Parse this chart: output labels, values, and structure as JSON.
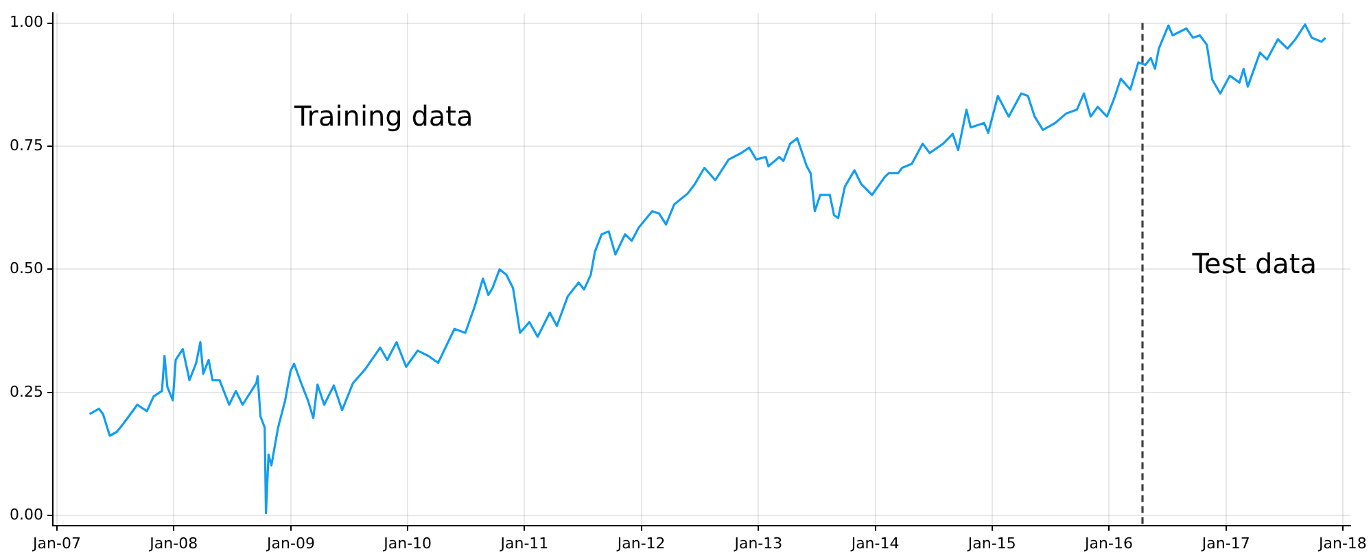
{
  "chart_data": {
    "type": "line",
    "x": [
      "2007-04-13",
      "2007-05-12",
      "2007-05-25",
      "2007-06-15",
      "2007-07-07",
      "2007-07-28",
      "2007-09-09",
      "2007-10-09",
      "2007-10-30",
      "2007-11-25",
      "2007-12-03",
      "2007-12-12",
      "2007-12-29",
      "2008-01-07",
      "2008-01-29",
      "2008-02-19",
      "2008-03-11",
      "2008-03-24",
      "2008-04-02",
      "2008-04-19",
      "2008-05-01",
      "2008-05-23",
      "2008-06-22",
      "2008-07-13",
      "2008-08-03",
      "2008-09-15",
      "2008-09-19",
      "2008-09-28",
      "2008-10-11",
      "2008-10-15",
      "2008-10-23",
      "2008-11-01",
      "2008-11-22",
      "2008-12-14",
      "2008-12-31",
      "2009-01-11",
      "2009-02-02",
      "2009-02-23",
      "2009-03-12",
      "2009-03-25",
      "2009-04-15",
      "2009-05-15",
      "2009-06-10",
      "2009-07-14",
      "2009-08-21",
      "2009-10-07",
      "2009-10-29",
      "2009-11-27",
      "2009-12-27",
      "2010-02-01",
      "2010-03-07",
      "2010-04-06",
      "2010-05-27",
      "2010-06-30",
      "2010-07-30",
      "2010-08-24",
      "2010-09-10",
      "2010-09-23",
      "2010-10-15",
      "2010-11-05",
      "2010-11-26",
      "2010-12-18",
      "2011-01-16",
      "2011-02-11",
      "2011-03-21",
      "2011-04-12",
      "2011-05-16",
      "2011-06-19",
      "2011-07-06",
      "2011-07-27",
      "2011-08-09",
      "2011-08-30",
      "2011-09-21",
      "2011-10-12",
      "2011-11-11",
      "2011-12-02",
      "2011-12-24",
      "2012-02-04",
      "2012-02-26",
      "2012-03-18",
      "2012-04-13",
      "2012-05-25",
      "2012-06-16",
      "2012-07-16",
      "2012-08-19",
      "2012-09-30",
      "2012-11-08",
      "2012-12-03",
      "2012-12-25",
      "2013-01-24",
      "2013-02-01",
      "2013-03-07",
      "2013-03-20",
      "2013-04-10",
      "2013-05-02",
      "2013-06-01",
      "2013-06-13",
      "2013-06-26",
      "2013-07-13",
      "2013-08-12",
      "2013-08-25",
      "2013-09-07",
      "2013-09-28",
      "2013-10-28",
      "2013-11-18",
      "2013-12-22",
      "2014-01-30",
      "2014-02-12",
      "2014-03-13",
      "2014-03-26",
      "2014-04-25",
      "2014-05-29",
      "2014-06-20",
      "2014-08-01",
      "2014-08-31",
      "2014-09-17",
      "2014-10-13",
      "2014-10-26",
      "2014-12-07",
      "2014-12-20",
      "2015-01-19",
      "2015-02-22",
      "2015-04-02",
      "2015-04-23",
      "2015-05-14",
      "2015-06-09",
      "2015-07-17",
      "2015-08-20",
      "2015-09-23",
      "2015-10-15",
      "2015-11-05",
      "2015-11-27",
      "2015-12-26",
      "2016-01-17",
      "2016-02-07",
      "2016-03-08",
      "2016-04-02",
      "2016-04-24",
      "2016-05-11",
      "2016-05-24",
      "2016-06-05",
      "2016-07-05",
      "2016-07-18",
      "2016-08-30",
      "2016-09-20",
      "2016-10-11",
      "2016-11-02",
      "2016-11-19",
      "2016-12-14",
      "2017-01-13",
      "2017-02-12",
      "2017-02-25",
      "2017-03-10",
      "2017-04-17",
      "2017-05-09",
      "2017-06-12",
      "2017-07-12",
      "2017-08-06",
      "2017-09-05",
      "2017-09-26",
      "2017-10-26",
      "2017-11-08"
    ],
    "series": [
      {
        "color": "#119df2",
        "values": [
          0.206,
          0.217,
          0.206,
          0.162,
          0.17,
          0.187,
          0.225,
          0.212,
          0.242,
          0.253,
          0.324,
          0.261,
          0.234,
          0.316,
          0.338,
          0.275,
          0.31,
          0.352,
          0.288,
          0.316,
          0.275,
          0.275,
          0.225,
          0.253,
          0.225,
          0.269,
          0.283,
          0.201,
          0.179,
          0.005,
          0.124,
          0.102,
          0.179,
          0.234,
          0.294,
          0.308,
          0.269,
          0.234,
          0.198,
          0.266,
          0.225,
          0.264,
          0.214,
          0.269,
          0.297,
          0.341,
          0.316,
          0.352,
          0.302,
          0.335,
          0.324,
          0.31,
          0.379,
          0.371,
          0.426,
          0.481,
          0.448,
          0.462,
          0.5,
          0.489,
          0.462,
          0.371,
          0.393,
          0.363,
          0.412,
          0.385,
          0.445,
          0.473,
          0.459,
          0.489,
          0.536,
          0.571,
          0.577,
          0.53,
          0.571,
          0.558,
          0.585,
          0.618,
          0.613,
          0.591,
          0.632,
          0.654,
          0.673,
          0.706,
          0.681,
          0.723,
          0.736,
          0.747,
          0.723,
          0.728,
          0.709,
          0.728,
          0.72,
          0.755,
          0.766,
          0.709,
          0.695,
          0.618,
          0.651,
          0.651,
          0.61,
          0.604,
          0.668,
          0.701,
          0.673,
          0.651,
          0.687,
          0.695,
          0.695,
          0.706,
          0.714,
          0.755,
          0.736,
          0.755,
          0.775,
          0.742,
          0.824,
          0.788,
          0.797,
          0.777,
          0.852,
          0.81,
          0.857,
          0.852,
          0.81,
          0.783,
          0.797,
          0.816,
          0.824,
          0.857,
          0.81,
          0.83,
          0.81,
          0.846,
          0.887,
          0.865,
          0.92,
          0.915,
          0.929,
          0.907,
          0.948,
          0.995,
          0.975,
          0.989,
          0.97,
          0.975,
          0.956,
          0.885,
          0.857,
          0.893,
          0.879,
          0.907,
          0.871,
          0.94,
          0.926,
          0.967,
          0.948,
          0.967,
          0.997,
          0.97,
          0.962,
          0.97
        ]
      }
    ],
    "xlim": [
      "2006-12-19",
      "2018-01-25"
    ],
    "xticks": [
      {
        "value": "2007-01-01",
        "label": "Jan-07"
      },
      {
        "value": "2008-01-01",
        "label": "Jan-08"
      },
      {
        "value": "2009-01-01",
        "label": "Jan-09"
      },
      {
        "value": "2010-01-01",
        "label": "Jan-10"
      },
      {
        "value": "2011-01-01",
        "label": "Jan-11"
      },
      {
        "value": "2012-01-01",
        "label": "Jan-12"
      },
      {
        "value": "2013-01-01",
        "label": "Jan-13"
      },
      {
        "value": "2014-01-01",
        "label": "Jan-14"
      },
      {
        "value": "2015-01-01",
        "label": "Jan-15"
      },
      {
        "value": "2016-01-01",
        "label": "Jan-16"
      },
      {
        "value": "2017-01-01",
        "label": "Jan-17"
      },
      {
        "value": "2018-01-01",
        "label": "Jan-18"
      }
    ],
    "ylim": [
      -0.02,
      1.02
    ],
    "yticks": [
      {
        "value": 0,
        "label": "0.00"
      },
      {
        "value": 0.25,
        "label": "0.25"
      },
      {
        "value": 0.5,
        "label": "0.50"
      },
      {
        "value": 0.75,
        "label": "0.75"
      },
      {
        "value": 1,
        "label": "1.00"
      }
    ],
    "grid": true,
    "legend": false,
    "marker": "none",
    "line_style": "solid",
    "ref_lines": [
      {
        "axis": "x",
        "value": "2016-04-15",
        "color": "#404040",
        "line_style": "dashed"
      }
    ],
    "annotations": [
      "Training data",
      "Test data"
    ]
  }
}
